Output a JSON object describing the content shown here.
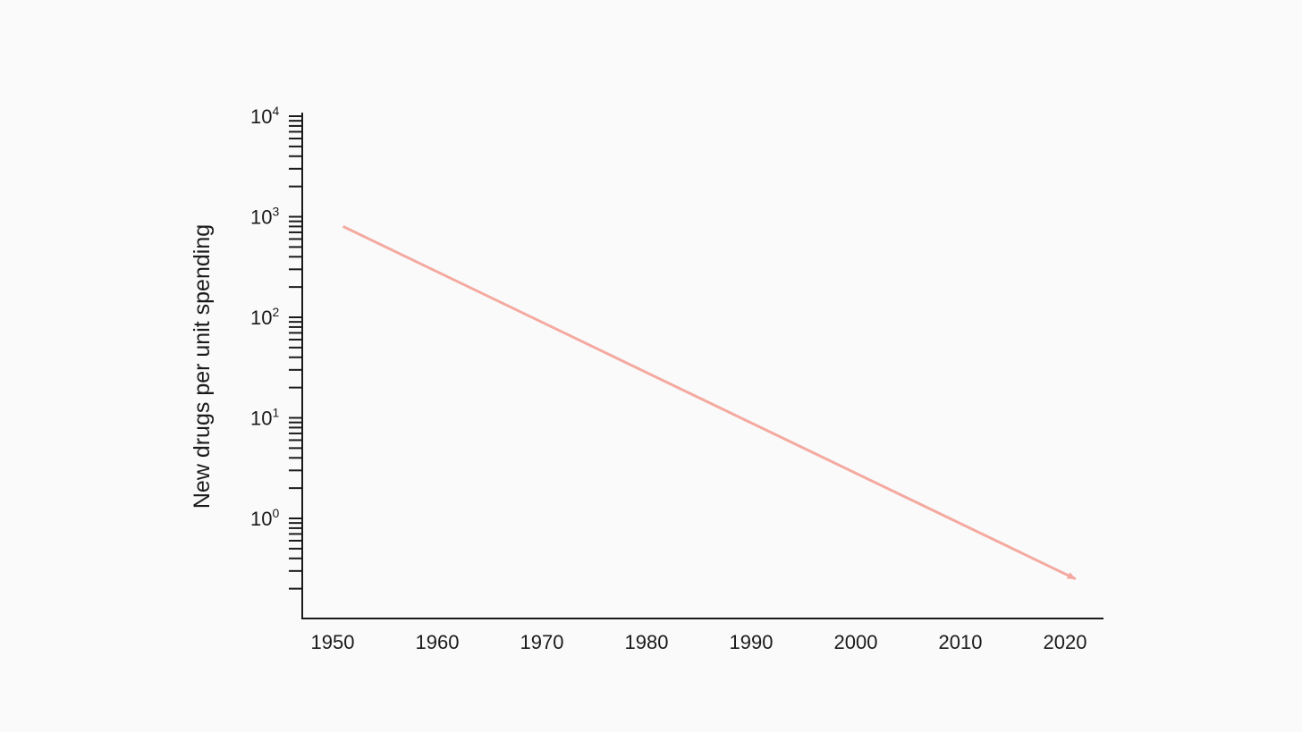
{
  "chart_data": {
    "type": "line",
    "title": "",
    "xlabel": "",
    "ylabel": "New drugs per unit spending",
    "y_scale": "log",
    "ylim": [
      0.1,
      10000
    ],
    "xlim": [
      1948.5,
      2024
    ],
    "y_ticks": [
      {
        "base": "10",
        "exp": "4",
        "value": 10000
      },
      {
        "base": "10",
        "exp": "3",
        "value": 1000
      },
      {
        "base": "10",
        "exp": "2",
        "value": 100
      },
      {
        "base": "10",
        "exp": "1",
        "value": 10
      },
      {
        "base": "10",
        "exp": "0",
        "value": 1
      }
    ],
    "x_ticks": [
      "1950",
      "1960",
      "1970",
      "1980",
      "1990",
      "2000",
      "2010",
      "2020"
    ],
    "grid": false,
    "series": [
      {
        "color": "#f4aaa0",
        "style": "arrow",
        "x": [
          1951,
          2021
        ],
        "y": [
          800,
          0.25
        ]
      }
    ]
  }
}
